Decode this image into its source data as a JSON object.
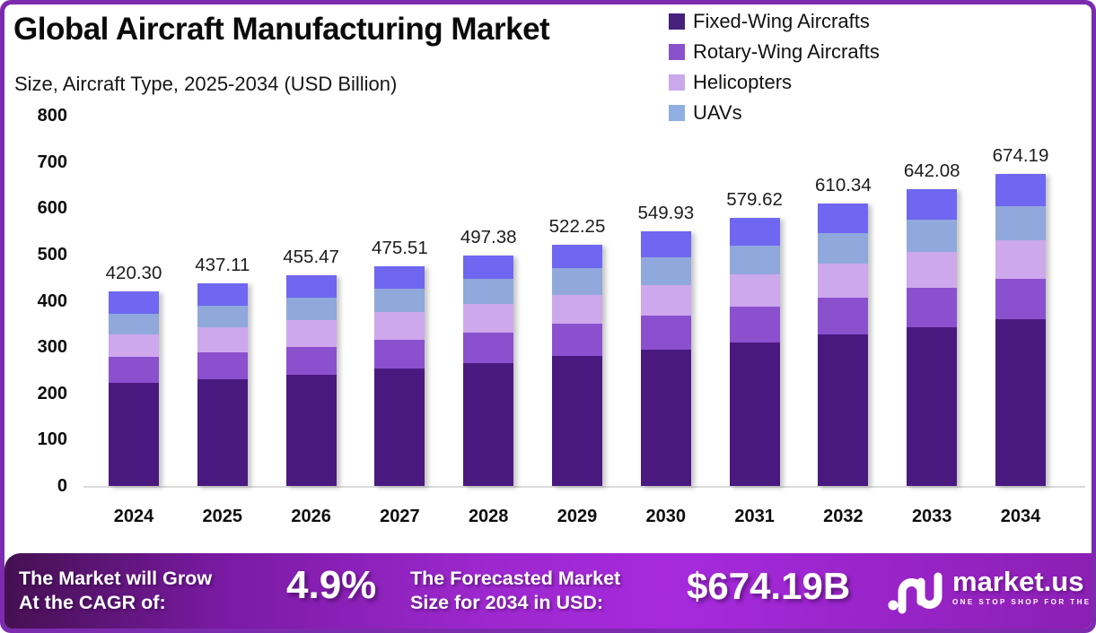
{
  "header": {
    "title": "Global Aircraft Manufacturing Market",
    "subtitle": "Size, Aircraft Type, 2025-2034 (USD Billion)"
  },
  "legend": [
    {
      "label": "Fixed-Wing Aircrafts",
      "color": "#46207B"
    },
    {
      "label": "Rotary-Wing Aircrafts",
      "color": "#8A51CD"
    },
    {
      "label": "Helicopters",
      "color": "#CBA8EB"
    },
    {
      "label": "UAVs",
      "color": "#8FAEE2"
    }
  ],
  "chart_data": {
    "type": "bar",
    "stacked": true,
    "title": "Global Aircraft Manufacturing Market",
    "subtitle": "Size, Aircraft Type, 2025-2034 (USD Billion)",
    "xlabel": "",
    "ylabel": "",
    "ylim": [
      0,
      800
    ],
    "y_ticks": [
      0,
      100,
      200,
      300,
      400,
      500,
      600,
      700,
      800
    ],
    "grid": false,
    "legend_position": "top-right",
    "categories": [
      "2024",
      "2025",
      "2026",
      "2027",
      "2028",
      "2029",
      "2030",
      "2031",
      "2032",
      "2033",
      "2034"
    ],
    "totals": [
      420.3,
      437.11,
      455.47,
      475.51,
      497.38,
      522.25,
      549.93,
      579.62,
      610.34,
      642.08,
      674.19
    ],
    "value_labels": [
      "420.30",
      "437.11",
      "455.47",
      "475.51",
      "497.38",
      "522.25",
      "549.93",
      "579.62",
      "610.34",
      "642.08",
      "674.19"
    ],
    "series": [
      {
        "name": "Fixed-Wing Aircrafts",
        "color": "#4A1980",
        "values": [
          222.3,
          231.11,
          240.97,
          253.01,
          265.38,
          280.25,
          294.43,
          310.62,
          326.84,
          343.58,
          360.19
        ]
      },
      {
        "name": "Rotary-Wing Aircrafts",
        "color": "#8B50CE",
        "values": [
          57.0,
          58.5,
          60.0,
          63.0,
          66.5,
          70.0,
          73.0,
          76.0,
          80.0,
          84.0,
          88.0
        ]
      },
      {
        "name": "Helicopters",
        "color": "#CDA8EC",
        "values": [
          49.0,
          53.0,
          57.0,
          59.0,
          61.0,
          63.0,
          66.5,
          70.0,
          74.0,
          78.5,
          83.0
        ]
      },
      {
        "name": "UAVs",
        "color": "#90A8DC",
        "values": [
          44.0,
          46.0,
          48.5,
          51.0,
          54.5,
          58.0,
          60.5,
          63.0,
          66.5,
          70.0,
          74.0
        ]
      },
      {
        "name": "Unlabeled top segment (no legend entry)",
        "color": "#6F67F1",
        "values": [
          48.0,
          48.5,
          49.0,
          49.5,
          50.0,
          51.0,
          55.5,
          60.0,
          63.0,
          66.0,
          69.0
        ]
      }
    ]
  },
  "banner": {
    "cagr_label_line1": "The Market will Grow",
    "cagr_label_line2": "At the CAGR of:",
    "cagr_value": "4.9%",
    "forecast_label_line1": "The Forecasted Market",
    "forecast_label_line2": "Size for 2034 in USD:",
    "forecast_value": "$674.19B",
    "logo_text": "market.us",
    "logo_tagline": "ONE STOP SHOP FOR THE REPORTS"
  },
  "colors": {
    "frame_border": "#7C2BAE",
    "background": "#FFFFFF",
    "baseline": "#DADADA",
    "banner_gradient_start": "#451051",
    "banner_gradient_mid": "#A62ADD",
    "banner_gradient_end": "#8C1FB4",
    "text_dark": "#0D0D0D",
    "text_white": "#FFFFFF"
  }
}
